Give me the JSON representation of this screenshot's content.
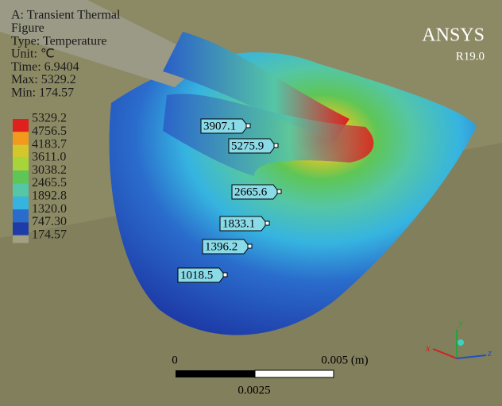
{
  "header": {
    "lines": [
      "A: Transient Thermal",
      "Figure",
      "Type: Temperature",
      "Unit: ℃",
      "Time: 6.9404",
      "Max: 5329.2",
      "Min: 174.57"
    ]
  },
  "logo": {
    "name": "ANSYS",
    "version": "R19.0"
  },
  "legend": {
    "labels": [
      "5329.2",
      "4756.5",
      "4183.7",
      "3611.0",
      "3038.2",
      "2465.5",
      "1892.8",
      "1320.0",
      "747.30",
      "174.57"
    ],
    "colors": [
      "#e0201c",
      "#f39a1d",
      "#d3c72a",
      "#a7d43a",
      "#5ec656",
      "#55c6a6",
      "#36b4e0",
      "#2a6ccc",
      "#1e3ca8"
    ]
  },
  "probes": [
    "3907.1",
    "5275.9",
    "2665.6",
    "1833.1",
    "1396.2",
    "1018.5"
  ],
  "scale_bar": {
    "start": "0",
    "end": "0.005 (m)",
    "middle": "0.0025"
  },
  "triad": {
    "x": "x",
    "y": "y",
    "z": "z"
  }
}
